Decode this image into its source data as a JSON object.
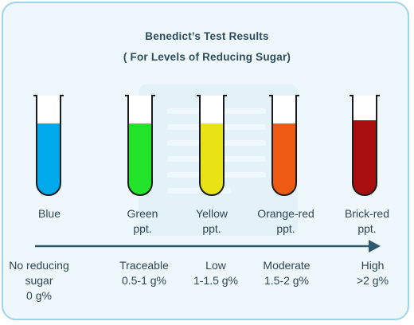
{
  "title": "Benedict’s Test Results",
  "subtitle": "( For Levels of Reducing Sugar)",
  "tubes": [
    {
      "color": "#00a8ec",
      "result": "Blue",
      "result_line2": "",
      "level": "No reducing",
      "level_line2": "sugar",
      "amount": "0 g%"
    },
    {
      "color": "#22e22a",
      "result": "Green",
      "result_line2": "ppt.",
      "level": "Traceable",
      "level_line2": "0.5-1 g%",
      "amount": ""
    },
    {
      "color": "#e8e314",
      "result": "Yellow",
      "result_line2": "ppt.",
      "level": "Low",
      "level_line2": "1-1.5 g%",
      "amount": ""
    },
    {
      "color": "#ec5a13",
      "result": "Orange-red",
      "result_line2": "ppt.",
      "level": "Moderate",
      "level_line2": "1.5-2 g%",
      "amount": ""
    },
    {
      "color": "#a90e0e",
      "result": "Brick-red",
      "result_line2": "ppt.",
      "level": "High",
      "level_line2": ">2 g%",
      "amount": ""
    }
  ],
  "colors": {
    "card_bg": "#eef8fc",
    "card_border": "#9fd3ea",
    "arrow": "#2e5a6e",
    "tube_glass": "#ffffff",
    "tube_outline": "#1c1c1c"
  }
}
